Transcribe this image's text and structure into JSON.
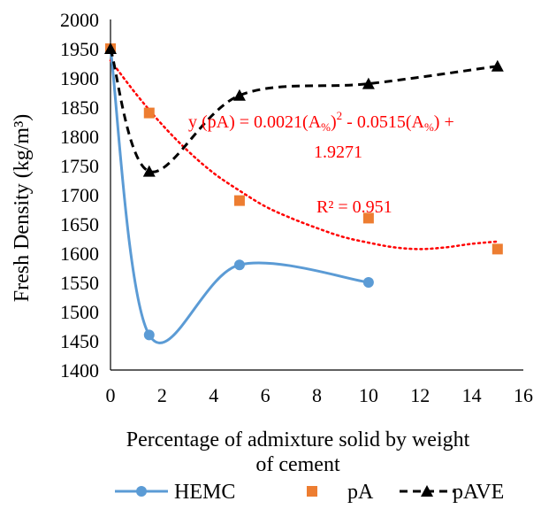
{
  "chart_data": {
    "type": "scatter",
    "xlabel_lines": [
      "Percentage of admixture solid by weight",
      "of cement"
    ],
    "ylabel": "Fresh Density (kg/m³)",
    "xlim": [
      0,
      16
    ],
    "ylim": [
      1400,
      2000
    ],
    "x_ticks": [
      "0",
      "2",
      "4",
      "6",
      "8",
      "10",
      "12",
      "14",
      "16"
    ],
    "y_ticks": [
      "1400",
      "1450",
      "1500",
      "1550",
      "1600",
      "1650",
      "1700",
      "1750",
      "1800",
      "1850",
      "1900",
      "1950",
      "2000"
    ],
    "grid": false,
    "legend_position": "bottom",
    "series": [
      {
        "name": "HEMC",
        "style": "smooth-line-with-circle-markers",
        "color": "#5B9BD5",
        "x": [
          0,
          1.5,
          5,
          10
        ],
        "y": [
          1950,
          1460,
          1580,
          1550
        ]
      },
      {
        "name": "pA",
        "style": "square-markers",
        "color": "#ED7D31",
        "x": [
          0,
          1.5,
          5,
          10,
          15
        ],
        "y": [
          1950,
          1840,
          1690,
          1660,
          1607
        ]
      },
      {
        "name": "pAVE",
        "style": "dashed-line-with-triangle-markers",
        "color": "#000000",
        "x": [
          0,
          1.5,
          5,
          10,
          15
        ],
        "y": [
          1950,
          1740,
          1870,
          1890,
          1920
        ]
      }
    ],
    "trendline": {
      "series": "pA",
      "style": "dotted",
      "color": "#FF0000",
      "x": [
        0,
        1,
        2,
        3,
        4,
        5,
        6,
        7,
        8,
        9,
        10,
        11,
        12,
        13,
        14,
        15
      ],
      "y": [
        1930,
        1872,
        1820,
        1775,
        1737,
        1707,
        1680,
        1660,
        1643,
        1628,
        1618,
        1610,
        1607,
        1610,
        1616,
        1620
      ]
    },
    "annotations": {
      "equation_line1": "y (pA) = 0.0021(A",
      "equation_sub1": "%",
      "equation_mid": ")",
      "equation_sup": "2",
      "equation_rest": "  - 0.0515(A",
      "equation_sub2": "%",
      "equation_end": ")  +",
      "equation_line2": "1.9271",
      "r_squared": "R² = 0.951",
      "color": "#FF0000"
    }
  }
}
